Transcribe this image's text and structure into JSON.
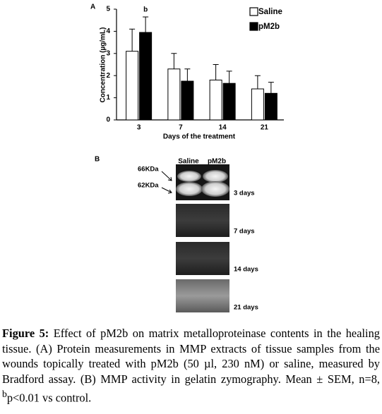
{
  "chart_data": {
    "type": "bar",
    "panel_label": "A",
    "y_label": "Concentration (µg/mL)",
    "x_label": "Days of the treatment",
    "categories": [
      "3",
      "7",
      "14",
      "21"
    ],
    "series": [
      {
        "name": "Saline",
        "color": "#ffffff",
        "values": [
          3.1,
          2.3,
          1.8,
          1.4
        ],
        "errors": [
          1.0,
          0.7,
          0.7,
          0.6
        ]
      },
      {
        "name": "pM2b",
        "color": "#000000",
        "values": [
          3.95,
          1.75,
          1.65,
          1.2
        ],
        "errors": [
          0.7,
          0.55,
          0.55,
          0.5
        ]
      }
    ],
    "annotation": "b",
    "ylim": [
      0,
      5
    ],
    "yticks": [
      0,
      1,
      2,
      3,
      4,
      5
    ],
    "grid": false
  },
  "panel_b": {
    "panel_label": "B",
    "lanes": [
      "Saline",
      "pM2b"
    ],
    "markers": [
      "66KDa",
      "62KDa"
    ],
    "gels": [
      "3 days",
      "7 days",
      "14 days",
      "21 days"
    ]
  },
  "caption": {
    "label": "Figure 5:",
    "text": "Effect of pM2b on matrix metalloproteinase contents in the healing tissue. (A) Protein measurements in MMP extracts of tissue samples from the wounds topically treated with pM2b (50 µl, 230 nM) or saline, measured by Bradford assay. (B) MMP activity in gelatin zymography. Mean ± SEM, n=8, ",
    "sup": "b",
    "text_after": "p<0.01 vs control."
  }
}
